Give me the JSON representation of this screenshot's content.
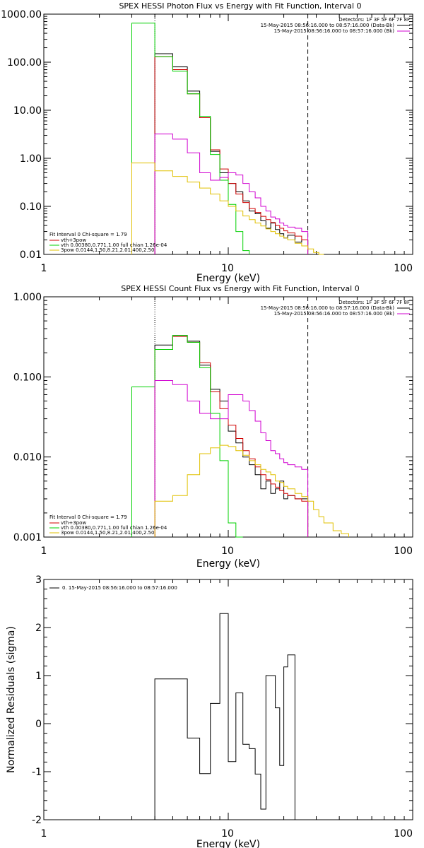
{
  "chart_data": [
    {
      "type": "line",
      "title": "SPEX HESSI Photon Flux vs Energy with Fit Function, Interval 0",
      "xlabel": "Energy (keV)",
      "ylabel": "",
      "xlim": [
        1,
        100
      ],
      "ylim": [
        0.01,
        1000
      ],
      "x_scale": "log",
      "y_scale": "log",
      "x_tick_labels": [
        "1",
        "10",
        "100"
      ],
      "y_tick_labels": [
        "1000.00",
        "100.00",
        "10.00",
        "1.00",
        "0.10",
        "0.01"
      ],
      "y_tick_values": [
        1000,
        100,
        10,
        1,
        0.1,
        0.01
      ],
      "vlines": [
        {
          "x": 4,
          "style": "dotted"
        },
        {
          "x": 27,
          "style": "dashed"
        }
      ],
      "legend_top_right": {
        "header": "Detectors: 1F 3F 5F 6F 7F 8F",
        "entries": [
          {
            "label": "15-May-2015 08:56:16.000 to 08:57:16.000 (Data-Bk)",
            "color": "#000000"
          },
          {
            "label": "15-May-2015 08:56:16.000 to 08:57:16.000 (Bk)",
            "color": "#d000d0"
          }
        ]
      },
      "legend_bottom_left": {
        "header": "Fit Interval 0   Chi-square = 1.79",
        "entries": [
          {
            "label": "vth+3pow",
            "color": "#d00000"
          },
          {
            "label": "vth 0.00380,0.771,1.00   full chian 1.26e-04",
            "color": "#00d000"
          },
          {
            "label": "3pow 0.0144,1.50,8.21,2.01,400,2.50",
            "color": "#e0c000"
          }
        ]
      },
      "bin_edges": [
        3,
        4,
        5,
        6,
        7,
        8,
        9,
        10,
        11,
        12,
        13,
        14,
        15,
        16,
        17,
        18,
        19,
        20,
        21,
        23,
        25,
        27,
        29,
        31,
        33
      ],
      "series": [
        {
          "color": "#000000",
          "values": [
            null,
            150,
            80,
            25,
            7,
            1.4,
            0.5,
            0.3,
            0.2,
            0.13,
            0.08,
            0.07,
            0.05,
            0.035,
            0.045,
            0.033,
            0.027,
            0.022,
            0.025,
            0.018,
            0.02,
            null,
            null,
            null
          ]
        },
        {
          "color": "#d00000",
          "values": [
            null,
            130,
            70,
            22,
            7,
            1.5,
            0.6,
            0.3,
            0.18,
            0.12,
            0.09,
            0.075,
            0.062,
            0.053,
            0.046,
            0.04,
            0.035,
            0.031,
            0.028,
            0.024,
            0.02,
            null,
            null,
            null
          ]
        },
        {
          "color": "#00d000",
          "values": [
            650,
            130,
            65,
            22,
            7.5,
            1.2,
            0.35,
            0.11,
            0.03,
            0.012,
            null,
            null,
            null,
            null,
            null,
            null,
            null,
            null,
            null,
            null,
            null,
            null,
            null,
            null
          ]
        },
        {
          "color": "#d000d0",
          "values": [
            null,
            3.2,
            2.5,
            1.3,
            0.5,
            0.35,
            0.4,
            0.5,
            0.45,
            0.3,
            0.2,
            0.15,
            0.1,
            0.08,
            0.06,
            0.055,
            0.045,
            0.04,
            0.037,
            0.035,
            0.03,
            null,
            null,
            null
          ]
        },
        {
          "color": "#e0c000",
          "values": [
            0.8,
            0.55,
            0.42,
            0.32,
            0.24,
            0.18,
            0.13,
            0.1,
            0.08,
            0.063,
            0.053,
            0.045,
            0.039,
            0.034,
            0.03,
            0.027,
            0.024,
            0.022,
            0.02,
            0.017,
            0.015,
            0.013,
            0.011,
            0.01
          ]
        }
      ]
    },
    {
      "type": "line",
      "title": "SPEX HESSI Count Flux vs Energy with Fit Function, Interval 0",
      "xlabel": "Energy (keV)",
      "ylabel": "",
      "xlim": [
        1,
        100
      ],
      "ylim": [
        0.001,
        1
      ],
      "x_scale": "log",
      "y_scale": "log",
      "x_tick_labels": [
        "1",
        "10",
        "100"
      ],
      "y_tick_labels": [
        "1.000",
        "0.100",
        "0.010",
        "0.001"
      ],
      "y_tick_values": [
        1,
        0.1,
        0.01,
        0.001
      ],
      "vlines": [
        {
          "x": 4,
          "style": "dotted"
        },
        {
          "x": 27,
          "style": "dashed"
        }
      ],
      "legend_top_right": {
        "header": "Detectors: 1F 3F 5F 6F 7F 8F",
        "entries": [
          {
            "label": "15-May-2015 08:56:16.000 to 08:57:16.000 (Data-Bk)",
            "color": "#000000"
          },
          {
            "label": "15-May-2015 08:56:16.000 to 08:57:16.000 (Bk)",
            "color": "#d000d0"
          }
        ]
      },
      "legend_bottom_left": {
        "header": "Fit Interval 0   Chi-square = 1.79",
        "entries": [
          {
            "label": "vth+3pow",
            "color": "#d00000"
          },
          {
            "label": "vth 0.00380,0.771,1.00   full chian 1.26e-04",
            "color": "#00d000"
          },
          {
            "label": "3pow 0.0144,1.50,8.21,2.01,400,2.50",
            "color": "#e0c000"
          }
        ]
      },
      "bin_edges": [
        3,
        4,
        5,
        6,
        7,
        8,
        9,
        10,
        11,
        12,
        13,
        14,
        15,
        16,
        17,
        18,
        19,
        20,
        21,
        23,
        25,
        27,
        29,
        31,
        33,
        37,
        41,
        45
      ],
      "series": [
        {
          "color": "#000000",
          "values": [
            null,
            0.25,
            0.33,
            0.28,
            0.14,
            0.07,
            0.05,
            0.021,
            0.015,
            0.01,
            0.008,
            0.006,
            0.004,
            0.005,
            0.0035,
            0.004,
            0.005,
            0.003,
            0.0033,
            0.003,
            0.003,
            null,
            null,
            null,
            null,
            null,
            null
          ]
        },
        {
          "color": "#d00000",
          "values": [
            null,
            0.22,
            0.32,
            0.27,
            0.15,
            0.065,
            0.04,
            0.025,
            0.017,
            0.012,
            0.0095,
            0.0075,
            0.006,
            0.0052,
            0.0046,
            0.0042,
            0.0038,
            0.0035,
            0.0033,
            0.003,
            0.0028,
            null,
            null,
            null,
            null,
            null,
            null
          ]
        },
        {
          "color": "#00d000",
          "values": [
            0.075,
            0.22,
            0.33,
            0.27,
            0.13,
            0.035,
            0.009,
            0.0015,
            0.0005,
            null,
            null,
            null,
            null,
            null,
            null,
            null,
            null,
            null,
            null,
            null,
            null,
            null,
            null,
            null,
            null,
            null,
            null
          ]
        },
        {
          "color": "#d000d0",
          "values": [
            null,
            0.09,
            0.08,
            0.05,
            0.035,
            0.03,
            0.03,
            0.06,
            0.06,
            0.05,
            0.038,
            0.028,
            0.02,
            0.016,
            0.012,
            0.011,
            0.0095,
            0.0085,
            0.008,
            0.0075,
            0.007,
            null,
            null,
            null,
            null,
            null,
            null
          ]
        },
        {
          "color": "#e0c000",
          "values": [
            null,
            0.0028,
            0.0033,
            0.006,
            0.011,
            0.013,
            0.014,
            0.0135,
            0.012,
            0.0105,
            0.009,
            0.008,
            0.007,
            0.0065,
            0.006,
            0.005,
            0.0048,
            0.0043,
            0.004,
            0.0035,
            0.0032,
            0.0028,
            0.0022,
            0.0018,
            0.0015,
            0.0012,
            0.0011
          ]
        }
      ]
    },
    {
      "type": "line",
      "title": "",
      "xlabel": "Energy (keV)",
      "ylabel": "Normalized Residuals (sigma)",
      "xlim": [
        1,
        100
      ],
      "ylim": [
        -2,
        3
      ],
      "x_scale": "log",
      "y_scale": "linear",
      "x_tick_labels": [
        "1",
        "10",
        "100"
      ],
      "y_tick_labels": [
        "3",
        "2",
        "1",
        "0",
        "-1",
        "-2"
      ],
      "y_tick_values": [
        3,
        2,
        1,
        0,
        -1,
        -2
      ],
      "legend_top_left": {
        "entries": [
          {
            "label": "0. 15-May-2015 08:56:16.000 to 08:57:16.000",
            "color": "#000000"
          }
        ]
      },
      "bin_edges": [
        4,
        5,
        6,
        7,
        8,
        9,
        10,
        11,
        12,
        13,
        14,
        15,
        16,
        17,
        18,
        19,
        20,
        21,
        23,
        25,
        27
      ],
      "series": [
        {
          "color": "#000000",
          "values": [
            0.93,
            0.93,
            -0.3,
            -1.04,
            0.42,
            2.29,
            -0.79,
            0.64,
            -0.43,
            -0.52,
            -1.05,
            -1.78,
            1.0,
            1.0,
            0.33,
            -0.87,
            1.18,
            1.43,
            null,
            null
          ]
        }
      ]
    }
  ]
}
